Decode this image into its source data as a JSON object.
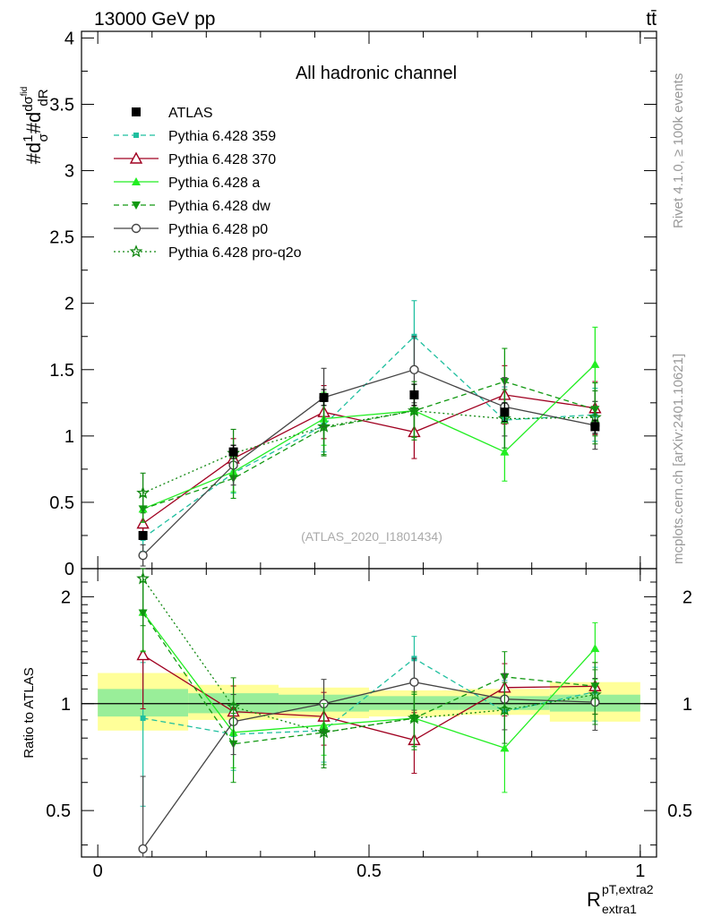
{
  "header": {
    "energy_label": "13000 GeV pp",
    "process_label": "tt̄",
    "side_label_top": "Rivet 4.1.0, ≥ 100k events",
    "side_label_bottom": "mcplots.cern.ch [arXiv:2401.10621]",
    "watermark": "(ATLAS_2020_I1801434)"
  },
  "chart_data": [
    {
      "type": "line",
      "panel": "main",
      "title": "All hadronic channel",
      "ylabel": "#d 1/σ #d dσ^fid / dR_extra1^pT,extra2",
      "ylim": [
        0,
        4.05
      ],
      "yticks": [
        0,
        0.5,
        1,
        1.5,
        2,
        2.5,
        3,
        3.5,
        4
      ],
      "ytick_labels": [
        "0",
        "0.5",
        "1",
        "1.5",
        "2",
        "2.5",
        "3",
        "3.5",
        "4"
      ],
      "x": [
        0.0833,
        0.25,
        0.4167,
        0.5833,
        0.75,
        0.9167
      ],
      "series": [
        {
          "name": "ATLAS",
          "values": [
            0.25,
            0.88,
            1.29,
            1.31,
            1.18,
            1.07
          ],
          "errors": [
            0.03,
            0.05,
            0.06,
            0.08,
            0.07,
            0.05
          ],
          "color": "#000000",
          "marker": "square",
          "dash": "none"
        },
        {
          "name": "Pythia 6.428 359",
          "values": [
            0.23,
            0.72,
            1.08,
            1.75,
            1.12,
            1.16
          ],
          "errors": [
            0.1,
            0.15,
            0.2,
            0.27,
            0.25,
            0.2
          ],
          "color": "#1fbf9f",
          "marker": "smallsquare",
          "dash": "6,4"
        },
        {
          "name": "Pythia 6.428 370",
          "values": [
            0.34,
            0.83,
            1.18,
            1.03,
            1.31,
            1.21
          ],
          "errors": [
            0.1,
            0.15,
            0.2,
            0.2,
            0.22,
            0.2
          ],
          "color": "#a00020",
          "marker": "opentriangle",
          "dash": "none"
        },
        {
          "name": "Pythia 6.428 a",
          "values": [
            0.45,
            0.73,
            1.13,
            1.19,
            0.88,
            1.54
          ],
          "errors": [
            0.1,
            0.15,
            0.2,
            0.2,
            0.22,
            0.28
          ],
          "color": "#22ee22",
          "marker": "triangle",
          "dash": "none"
        },
        {
          "name": "Pythia 6.428 dw",
          "values": [
            0.45,
            0.68,
            1.06,
            1.19,
            1.41,
            1.2
          ],
          "errors": [
            0.1,
            0.15,
            0.2,
            0.2,
            0.25,
            0.2
          ],
          "color": "#119911",
          "marker": "invtriangle",
          "dash": "6,4"
        },
        {
          "name": "Pythia 6.428 p0",
          "values": [
            0.1,
            0.78,
            1.29,
            1.5,
            1.22,
            1.08
          ],
          "errors": [
            0.08,
            0.15,
            0.22,
            0.25,
            0.22,
            0.18
          ],
          "color": "#444444",
          "marker": "opencircle",
          "dash": "none"
        },
        {
          "name": "Pythia 6.428 pro-q2o",
          "values": [
            0.57,
            0.87,
            1.07,
            1.19,
            1.13,
            1.14
          ],
          "errors": [
            0.15,
            0.18,
            0.22,
            0.22,
            0.22,
            0.2
          ],
          "color": "#118811",
          "marker": "star",
          "dash": "2,3"
        }
      ],
      "legend_position": "top-left"
    },
    {
      "type": "line",
      "panel": "ratio",
      "ylabel": "Ratio to ATLAS",
      "xlabel": "R_extra1^pT,extra2",
      "xlim": [
        -0.03,
        1.03
      ],
      "xticks": [
        0,
        0.5,
        1
      ],
      "xtick_labels": [
        "0",
        "0.5",
        "1"
      ],
      "ylim": [
        0.37,
        2.4
      ],
      "ylog": true,
      "yticks": [
        0.5,
        1,
        2
      ],
      "ytick_labels": [
        "0.5",
        "1",
        "2"
      ],
      "bin_edges": [
        0,
        0.1667,
        0.3333,
        0.5,
        0.6667,
        0.8333,
        1.0
      ],
      "stat_band": [
        [
          0.92,
          1.1
        ],
        [
          0.94,
          1.07
        ],
        [
          0.95,
          1.06
        ],
        [
          0.96,
          1.05
        ],
        [
          0.96,
          1.05
        ],
        [
          0.95,
          1.06
        ]
      ],
      "total_band": [
        [
          0.84,
          1.22
        ],
        [
          0.9,
          1.13
        ],
        [
          0.91,
          1.11
        ],
        [
          0.92,
          1.09
        ],
        [
          0.93,
          1.1
        ],
        [
          0.89,
          1.15
        ]
      ],
      "x": [
        0.0833,
        0.25,
        0.4167,
        0.5833,
        0.75,
        0.9167
      ],
      "series": [
        {
          "name": "Pythia 6.428 359",
          "values": [
            0.91,
            0.82,
            0.84,
            1.34,
            0.95,
            1.08
          ]
        },
        {
          "name": "Pythia 6.428 370",
          "values": [
            1.37,
            0.95,
            0.92,
            0.79,
            1.11,
            1.12
          ]
        },
        {
          "name": "Pythia 6.428 a",
          "values": [
            1.81,
            0.83,
            0.87,
            0.91,
            0.75,
            1.43
          ]
        },
        {
          "name": "Pythia 6.428 dw",
          "values": [
            1.8,
            0.77,
            0.83,
            0.91,
            1.19,
            1.12
          ]
        },
        {
          "name": "Pythia 6.428 p0",
          "values": [
            0.39,
            0.89,
            1.0,
            1.15,
            1.03,
            1.01
          ]
        },
        {
          "name": "Pythia 6.428 pro-q2o",
          "values": [
            2.25,
            0.98,
            0.83,
            0.91,
            0.96,
            1.06
          ]
        }
      ]
    }
  ]
}
